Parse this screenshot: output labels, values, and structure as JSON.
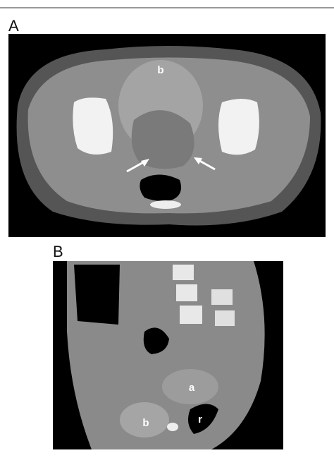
{
  "panels": [
    {
      "label": "A",
      "annotations": [
        "b"
      ]
    },
    {
      "label": "B",
      "annotations": [
        "a",
        "b",
        "r"
      ]
    }
  ]
}
